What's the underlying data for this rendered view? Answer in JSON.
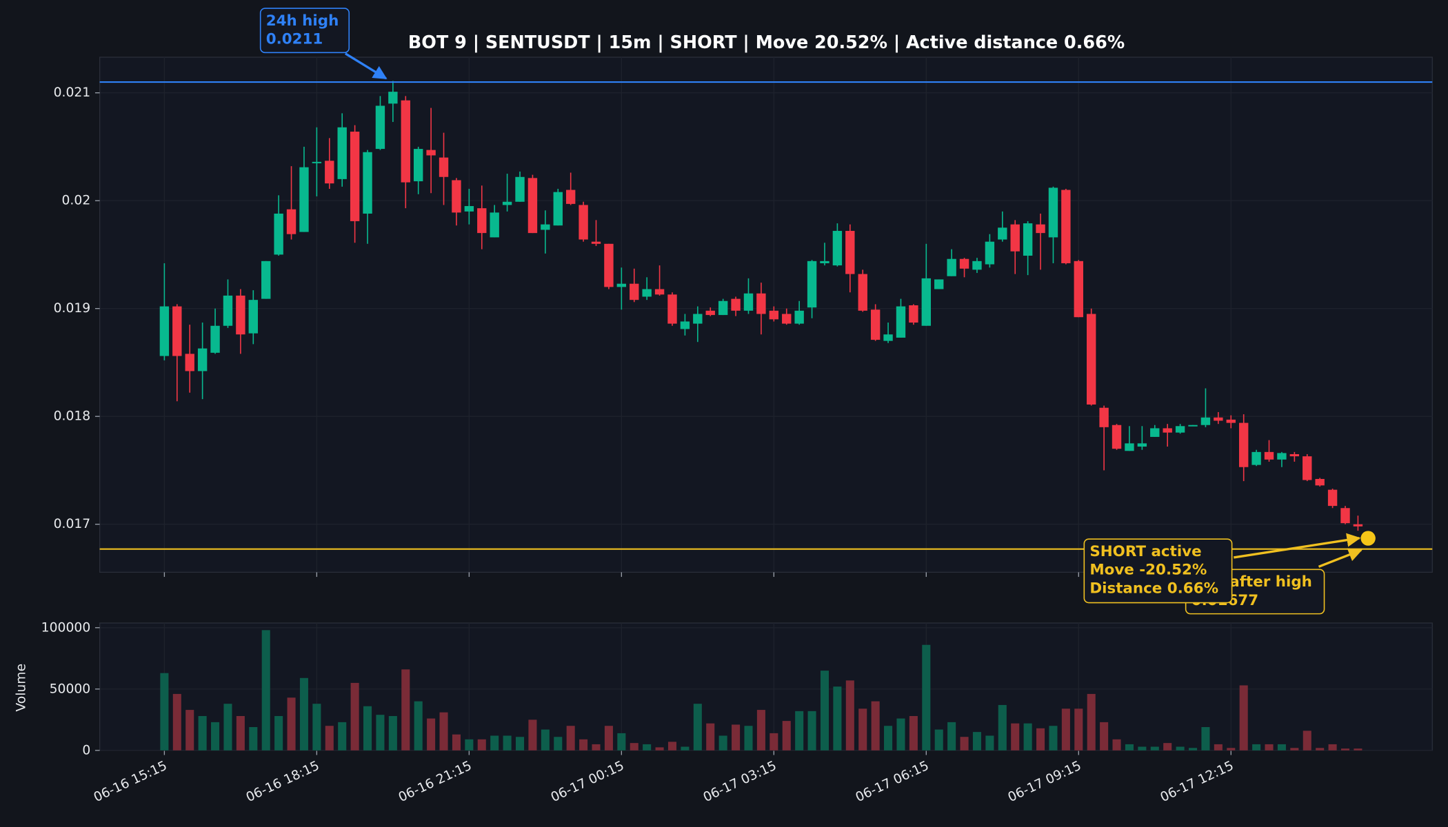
{
  "chart_data": [
    {
      "type": "candlestick",
      "title": "BOT 9 | SENTUSDT | 15m | SHORT | Move 20.52% | Active distance 0.66%",
      "open": [
        0.01856,
        0.01902,
        0.01858,
        0.01842,
        0.01859,
        0.01884,
        0.01912,
        0.01877,
        0.01909,
        0.0195,
        0.01992,
        0.01971,
        0.02035,
        0.02037,
        0.0202,
        0.02064,
        0.01988,
        0.02048,
        0.0209,
        0.02093,
        0.02018,
        0.02047,
        0.0204,
        0.02019,
        0.0199,
        0.01993,
        0.01966,
        0.01996,
        0.01999,
        0.02021,
        0.01973,
        0.01977,
        0.0201,
        0.01996,
        0.01962,
        0.0196,
        0.0192,
        0.01923,
        0.01911,
        0.01918,
        0.01913,
        0.01881,
        0.01886,
        0.01898,
        0.01894,
        0.01909,
        0.01898,
        0.01914,
        0.01898,
        0.01895,
        0.01886,
        0.01901,
        0.01942,
        0.0194,
        0.01972,
        0.01932,
        0.01899,
        0.0187,
        0.01873,
        0.01903,
        0.01884,
        0.01918,
        0.0193,
        0.01946,
        0.01936,
        0.01941,
        0.01964,
        0.01978,
        0.01949,
        0.01978,
        0.01966,
        0.0201,
        0.01944,
        0.01895,
        0.01808,
        0.01792,
        0.01768,
        0.01772,
        0.01781,
        0.01789,
        0.01785,
        0.01791,
        0.01792,
        0.01799,
        0.01797,
        0.01794,
        0.01755,
        0.01767,
        0.0176,
        0.01765,
        0.01763,
        0.01742,
        0.01732,
        0.01715,
        0.017
      ],
      "high": [
        0.01942,
        0.01904,
        0.01885,
        0.01887,
        0.019,
        0.01927,
        0.01918,
        0.01917,
        0.01944,
        0.02005,
        0.02032,
        0.0205,
        0.02068,
        0.02058,
        0.02081,
        0.0207,
        0.02047,
        0.02097,
        0.02111,
        0.02097,
        0.0205,
        0.02086,
        0.02063,
        0.02021,
        0.02011,
        0.02014,
        0.01996,
        0.02025,
        0.02027,
        0.02024,
        0.01991,
        0.02011,
        0.02026,
        0.01999,
        0.01982,
        0.0196,
        0.01938,
        0.01937,
        0.01929,
        0.0194,
        0.01915,
        0.01895,
        0.01902,
        0.01901,
        0.01909,
        0.01911,
        0.01928,
        0.01924,
        0.01902,
        0.019,
        0.01907,
        0.01945,
        0.01961,
        0.01979,
        0.01978,
        0.01936,
        0.01904,
        0.01887,
        0.01909,
        0.01904,
        0.0196,
        0.01927,
        0.01955,
        0.01947,
        0.01947,
        0.01969,
        0.0199,
        0.01982,
        0.01981,
        0.01988,
        0.02013,
        0.02011,
        0.01945,
        0.019,
        0.0181,
        0.01793,
        0.01791,
        0.01791,
        0.01792,
        0.01793,
        0.01793,
        0.01792,
        0.01826,
        0.01804,
        0.01801,
        0.01802,
        0.01769,
        0.01778,
        0.01767,
        0.01767,
        0.01765,
        0.01743,
        0.01733,
        0.01717,
        0.01708
      ],
      "low": [
        0.01852,
        0.01814,
        0.01822,
        0.01816,
        0.01858,
        0.01882,
        0.01858,
        0.01867,
        0.01909,
        0.01949,
        0.01964,
        0.01971,
        0.02004,
        0.02011,
        0.02013,
        0.01961,
        0.0196,
        0.02047,
        0.02073,
        0.01993,
        0.02006,
        0.02007,
        0.01996,
        0.01977,
        0.01978,
        0.01955,
        0.01966,
        0.0199,
        0.01999,
        0.0197,
        0.01951,
        0.01977,
        0.01996,
        0.01962,
        0.01958,
        0.01918,
        0.01899,
        0.01906,
        0.01908,
        0.01912,
        0.01884,
        0.01875,
        0.01869,
        0.01893,
        0.01894,
        0.01893,
        0.01895,
        0.01876,
        0.01888,
        0.01885,
        0.01885,
        0.01891,
        0.0194,
        0.01939,
        0.01915,
        0.01897,
        0.0187,
        0.01868,
        0.01873,
        0.01885,
        0.01884,
        0.01918,
        0.0193,
        0.01929,
        0.01933,
        0.01938,
        0.01962,
        0.01932,
        0.01931,
        0.01936,
        0.01942,
        0.01941,
        0.01892,
        0.0181,
        0.0175,
        0.01769,
        0.01768,
        0.01769,
        0.01781,
        0.01772,
        0.01784,
        0.01791,
        0.0179,
        0.01793,
        0.01789,
        0.0174,
        0.01754,
        0.01758,
        0.01753,
        0.01758,
        0.0174,
        0.01735,
        0.01715,
        0.017,
        0.01694
      ],
      "close": [
        0.01902,
        0.01856,
        0.01842,
        0.01863,
        0.01884,
        0.01912,
        0.01876,
        0.01908,
        0.01944,
        0.01988,
        0.01969,
        0.02031,
        0.02036,
        0.02016,
        0.02068,
        0.01981,
        0.02045,
        0.02088,
        0.02101,
        0.02017,
        0.02048,
        0.02042,
        0.02022,
        0.01989,
        0.01995,
        0.0197,
        0.01989,
        0.01999,
        0.02022,
        0.0197,
        0.01978,
        0.02008,
        0.01997,
        0.01964,
        0.0196,
        0.0192,
        0.01923,
        0.01908,
        0.01918,
        0.01913,
        0.01886,
        0.01888,
        0.01895,
        0.01894,
        0.01907,
        0.01898,
        0.01914,
        0.01895,
        0.0189,
        0.01886,
        0.01898,
        0.01944,
        0.01944,
        0.01972,
        0.01932,
        0.01898,
        0.01871,
        0.01876,
        0.01902,
        0.01887,
        0.01928,
        0.01927,
        0.01946,
        0.01937,
        0.01944,
        0.01962,
        0.01975,
        0.01953,
        0.01979,
        0.0197,
        0.02012,
        0.01942,
        0.01892,
        0.01811,
        0.0179,
        0.0177,
        0.01775,
        0.01775,
        0.01789,
        0.01785,
        0.01791,
        0.01792,
        0.01799,
        0.01796,
        0.01794,
        0.01753,
        0.01767,
        0.0176,
        0.01766,
        0.01763,
        0.01741,
        0.01736,
        0.01717,
        0.01701,
        0.01698
      ],
      "up_color": "#08b98f",
      "down_color": "#f23645",
      "ylim": [
        0.016555,
        0.02133
      ],
      "yticks": [
        0.017,
        0.018,
        0.019,
        0.02,
        0.021
      ],
      "grid": true,
      "hlines": [
        {
          "value": 0.0211,
          "color": "#2f81f7"
        },
        {
          "value": 0.01677,
          "color": "#f0c020"
        }
      ],
      "marker": {
        "x": 94.8,
        "y": 0.01687,
        "color": "#f5c518"
      },
      "annotations": [
        {
          "lines": [
            "24h high",
            "0.0211"
          ],
          "color": "#2f81f7"
        },
        {
          "lines": [
            "Low after high",
            "0.01677"
          ],
          "color": "#f0c020"
        },
        {
          "lines": [
            "SHORT active",
            "Move -20.52%",
            "Distance 0.66%"
          ],
          "color": "#f0c020"
        }
      ]
    },
    {
      "type": "bar",
      "ylabel": "Volume",
      "categories": [
        "06-16 15:15",
        null,
        null,
        null,
        null,
        null,
        null,
        null,
        null,
        null,
        null,
        null,
        "06-16 18:15",
        null,
        null,
        null,
        null,
        null,
        null,
        null,
        null,
        null,
        null,
        null,
        "06-16 21:15",
        null,
        null,
        null,
        null,
        null,
        null,
        null,
        null,
        null,
        null,
        null,
        "06-17 00:15",
        null,
        null,
        null,
        null,
        null,
        null,
        null,
        null,
        null,
        null,
        null,
        "06-17 03:15",
        null,
        null,
        null,
        null,
        null,
        null,
        null,
        null,
        null,
        null,
        null,
        "06-17 06:15",
        null,
        null,
        null,
        null,
        null,
        null,
        null,
        null,
        null,
        null,
        null,
        "06-17 09:15",
        null,
        null,
        null,
        null,
        null,
        null,
        null,
        null,
        null,
        null,
        null,
        "06-17 12:15",
        null,
        null,
        null,
        null,
        null,
        null,
        null,
        null,
        null,
        null
      ],
      "values": [
        63000,
        46000,
        33000,
        28000,
        23000,
        38000,
        28000,
        19000,
        98000,
        28000,
        43000,
        59000,
        38000,
        20000,
        23000,
        55000,
        36000,
        29000,
        28000,
        66000,
        40000,
        26000,
        31000,
        13000,
        9000,
        9000,
        12000,
        12000,
        11000,
        25000,
        17000,
        11000,
        20000,
        9000,
        5000,
        20000,
        14000,
        6000,
        5000,
        2500,
        7000,
        3000,
        38000,
        22000,
        12000,
        21000,
        20000,
        33000,
        14000,
        24000,
        32000,
        32000,
        65000,
        52000,
        57000,
        34000,
        40000,
        20000,
        26000,
        28000,
        86000,
        17000,
        23000,
        11000,
        15000,
        12000,
        37000,
        22000,
        22000,
        18000,
        20000,
        34000,
        34000,
        46000,
        23000,
        9000,
        5000,
        3000,
        3000,
        6000,
        3000,
        2000,
        19000,
        5000,
        2000,
        53000,
        5000,
        5000,
        5000,
        2000,
        16000,
        2000,
        5000,
        1500,
        1500
      ],
      "up_color": "#0d5e4c",
      "down_color": "#7a2b37",
      "ylim": [
        0,
        103800
      ],
      "yticks": [
        0,
        50000,
        100000
      ],
      "grid": true
    }
  ]
}
